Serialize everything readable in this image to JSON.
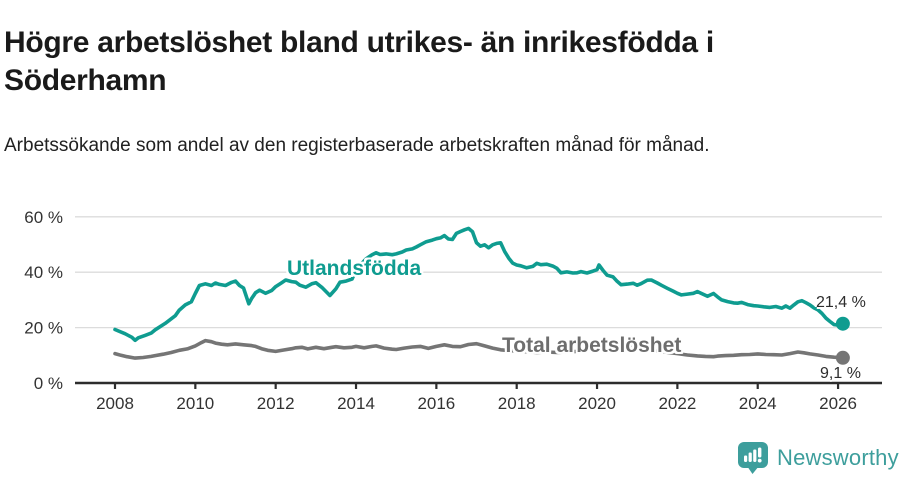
{
  "header": {
    "title": "Högre arbetslöshet bland utrikes- än inrikesfödda i Söderhamn",
    "subtitle": "Arbetssökande som andel av den registerbaserade arbetskraften månad för månad."
  },
  "footer": {
    "brand": "Newsworthy",
    "logo_icon": "bar-chart-speech-bubble-icon",
    "brand_color": "#3d9e9c"
  },
  "colors": {
    "foreign_line": "#0f9c90",
    "total_line": "#757575",
    "gridline": "#dcdcdc",
    "axis": "#2d2d2d",
    "tick_text": "#333333",
    "end_label_text": "#2d2d2d"
  },
  "chart_data": {
    "type": "line",
    "title": "Högre arbetslöshet bland utrikes- än inrikesfödda i Söderhamn",
    "subtitle": "Arbetssökande som andel av den registerbaserade arbetskraften månad för månad.",
    "grid": true,
    "legend_position": "inline-labels",
    "x_axis": {
      "ticks": [
        2008,
        2010,
        2012,
        2014,
        2016,
        2018,
        2020,
        2022,
        2024,
        2026
      ],
      "range": [
        2007.0,
        2027.1
      ]
    },
    "y_axis": {
      "ticks": [
        0,
        20,
        40,
        60
      ],
      "tick_labels": [
        "0 %",
        "20 %",
        "40 %",
        "60 %"
      ],
      "range": [
        0,
        62
      ],
      "unit": "%"
    },
    "series": [
      {
        "name": "Utlandsfödda",
        "color": "#0f9c90",
        "end_label": "21,4 %",
        "end_value": 21.4,
        "points": [
          [
            2008.0,
            19.3
          ],
          [
            2008.08,
            18.8
          ],
          [
            2008.25,
            17.8
          ],
          [
            2008.42,
            16.5
          ],
          [
            2008.5,
            15.4
          ],
          [
            2008.58,
            16.3
          ],
          [
            2008.75,
            17.2
          ],
          [
            2008.9,
            18.0
          ],
          [
            2009.0,
            19.2
          ],
          [
            2009.25,
            21.5
          ],
          [
            2009.5,
            24.3
          ],
          [
            2009.6,
            26.3
          ],
          [
            2009.75,
            28.2
          ],
          [
            2009.9,
            29.3
          ],
          [
            2010.0,
            32.3
          ],
          [
            2010.1,
            35.2
          ],
          [
            2010.25,
            35.8
          ],
          [
            2010.4,
            35.2
          ],
          [
            2010.5,
            36.1
          ],
          [
            2010.6,
            35.6
          ],
          [
            2010.75,
            35.2
          ],
          [
            2010.9,
            36.3
          ],
          [
            2011.0,
            36.8
          ],
          [
            2011.1,
            35.2
          ],
          [
            2011.2,
            34.3
          ],
          [
            2011.33,
            28.6
          ],
          [
            2011.4,
            30.5
          ],
          [
            2011.5,
            32.6
          ],
          [
            2011.6,
            33.5
          ],
          [
            2011.75,
            32.4
          ],
          [
            2011.9,
            33.4
          ],
          [
            2012.0,
            34.8
          ],
          [
            2012.15,
            36.2
          ],
          [
            2012.25,
            37.2
          ],
          [
            2012.4,
            36.6
          ],
          [
            2012.5,
            36.4
          ],
          [
            2012.6,
            35.3
          ],
          [
            2012.75,
            34.6
          ],
          [
            2012.9,
            35.8
          ],
          [
            2013.0,
            36.2
          ],
          [
            2013.15,
            34.5
          ],
          [
            2013.35,
            31.6
          ],
          [
            2013.5,
            34.0
          ],
          [
            2013.6,
            36.4
          ],
          [
            2013.75,
            36.8
          ],
          [
            2013.9,
            37.5
          ],
          [
            2014.0,
            40.6
          ],
          [
            2014.1,
            42.5
          ],
          [
            2014.25,
            44.8
          ],
          [
            2014.4,
            46.3
          ],
          [
            2014.5,
            47.0
          ],
          [
            2014.6,
            46.4
          ],
          [
            2014.75,
            46.6
          ],
          [
            2014.9,
            46.3
          ],
          [
            2015.0,
            46.6
          ],
          [
            2015.15,
            47.3
          ],
          [
            2015.25,
            48.0
          ],
          [
            2015.4,
            48.4
          ],
          [
            2015.5,
            49.1
          ],
          [
            2015.6,
            49.9
          ],
          [
            2015.75,
            51.0
          ],
          [
            2015.9,
            51.6
          ],
          [
            2016.0,
            52.1
          ],
          [
            2016.1,
            52.4
          ],
          [
            2016.2,
            53.2
          ],
          [
            2016.3,
            52.0
          ],
          [
            2016.4,
            51.8
          ],
          [
            2016.5,
            54.0
          ],
          [
            2016.6,
            54.7
          ],
          [
            2016.7,
            55.3
          ],
          [
            2016.8,
            55.8
          ],
          [
            2016.9,
            54.6
          ],
          [
            2017.0,
            50.6
          ],
          [
            2017.1,
            49.4
          ],
          [
            2017.2,
            49.9
          ],
          [
            2017.3,
            48.8
          ],
          [
            2017.4,
            49.9
          ],
          [
            2017.5,
            50.4
          ],
          [
            2017.6,
            50.6
          ],
          [
            2017.7,
            47.5
          ],
          [
            2017.8,
            45.1
          ],
          [
            2017.9,
            43.3
          ],
          [
            2018.0,
            42.6
          ],
          [
            2018.1,
            42.3
          ],
          [
            2018.25,
            41.6
          ],
          [
            2018.4,
            42.1
          ],
          [
            2018.5,
            43.2
          ],
          [
            2018.6,
            42.7
          ],
          [
            2018.75,
            42.9
          ],
          [
            2018.9,
            42.2
          ],
          [
            2019.0,
            41.4
          ],
          [
            2019.1,
            39.8
          ],
          [
            2019.25,
            40.1
          ],
          [
            2019.4,
            39.7
          ],
          [
            2019.5,
            39.8
          ],
          [
            2019.6,
            40.2
          ],
          [
            2019.75,
            39.7
          ],
          [
            2019.9,
            40.4
          ],
          [
            2020.0,
            40.9
          ],
          [
            2020.05,
            42.6
          ],
          [
            2020.15,
            40.6
          ],
          [
            2020.25,
            38.9
          ],
          [
            2020.4,
            38.3
          ],
          [
            2020.5,
            36.7
          ],
          [
            2020.6,
            35.5
          ],
          [
            2020.75,
            35.7
          ],
          [
            2020.9,
            36.0
          ],
          [
            2021.0,
            35.3
          ],
          [
            2021.1,
            35.9
          ],
          [
            2021.25,
            37.1
          ],
          [
            2021.35,
            37.2
          ],
          [
            2021.5,
            36.1
          ],
          [
            2021.6,
            35.3
          ],
          [
            2021.75,
            34.2
          ],
          [
            2021.9,
            33.1
          ],
          [
            2022.0,
            32.4
          ],
          [
            2022.1,
            31.8
          ],
          [
            2022.25,
            32.1
          ],
          [
            2022.4,
            32.4
          ],
          [
            2022.5,
            33.0
          ],
          [
            2022.6,
            32.3
          ],
          [
            2022.75,
            31.3
          ],
          [
            2022.9,
            32.3
          ],
          [
            2023.0,
            31.1
          ],
          [
            2023.1,
            30.0
          ],
          [
            2023.25,
            29.4
          ],
          [
            2023.4,
            28.9
          ],
          [
            2023.5,
            28.8
          ],
          [
            2023.6,
            29.1
          ],
          [
            2023.75,
            28.3
          ],
          [
            2023.9,
            27.9
          ],
          [
            2024.0,
            27.8
          ],
          [
            2024.15,
            27.5
          ],
          [
            2024.3,
            27.3
          ],
          [
            2024.45,
            27.6
          ],
          [
            2024.6,
            27.0
          ],
          [
            2024.7,
            27.8
          ],
          [
            2024.8,
            27.0
          ],
          [
            2024.9,
            28.2
          ],
          [
            2025.0,
            29.3
          ],
          [
            2025.1,
            29.7
          ],
          [
            2025.2,
            29.0
          ],
          [
            2025.3,
            28.2
          ],
          [
            2025.4,
            27.1
          ],
          [
            2025.5,
            26.4
          ],
          [
            2025.6,
            25.1
          ],
          [
            2025.7,
            23.4
          ],
          [
            2025.8,
            22.2
          ],
          [
            2025.9,
            21.1
          ],
          [
            2026.0,
            20.9
          ],
          [
            2026.12,
            21.4
          ]
        ]
      },
      {
        "name": "Total arbetslöshet",
        "color": "#757575",
        "end_label": "9,1 %",
        "end_value": 9.1,
        "points": [
          [
            2008.0,
            10.6
          ],
          [
            2008.15,
            10.0
          ],
          [
            2008.3,
            9.5
          ],
          [
            2008.5,
            9.0
          ],
          [
            2008.7,
            9.2
          ],
          [
            2008.9,
            9.6
          ],
          [
            2009.0,
            9.9
          ],
          [
            2009.2,
            10.4
          ],
          [
            2009.4,
            11.0
          ],
          [
            2009.6,
            11.8
          ],
          [
            2009.8,
            12.3
          ],
          [
            2010.0,
            13.4
          ],
          [
            2010.15,
            14.6
          ],
          [
            2010.25,
            15.3
          ],
          [
            2010.4,
            14.9
          ],
          [
            2010.5,
            14.4
          ],
          [
            2010.65,
            14.0
          ],
          [
            2010.8,
            13.8
          ],
          [
            2011.0,
            14.1
          ],
          [
            2011.2,
            13.8
          ],
          [
            2011.4,
            13.5
          ],
          [
            2011.5,
            13.2
          ],
          [
            2011.65,
            12.4
          ],
          [
            2011.8,
            11.8
          ],
          [
            2012.0,
            11.4
          ],
          [
            2012.2,
            11.9
          ],
          [
            2012.4,
            12.4
          ],
          [
            2012.5,
            12.7
          ],
          [
            2012.65,
            12.9
          ],
          [
            2012.8,
            12.3
          ],
          [
            2013.0,
            12.9
          ],
          [
            2013.2,
            12.4
          ],
          [
            2013.4,
            12.9
          ],
          [
            2013.5,
            13.1
          ],
          [
            2013.7,
            12.7
          ],
          [
            2013.9,
            12.9
          ],
          [
            2014.0,
            13.2
          ],
          [
            2014.2,
            12.7
          ],
          [
            2014.4,
            13.2
          ],
          [
            2014.5,
            13.4
          ],
          [
            2014.7,
            12.6
          ],
          [
            2014.9,
            12.2
          ],
          [
            2015.0,
            12.1
          ],
          [
            2015.2,
            12.6
          ],
          [
            2015.4,
            13.0
          ],
          [
            2015.6,
            13.2
          ],
          [
            2015.8,
            12.5
          ],
          [
            2016.0,
            13.2
          ],
          [
            2016.2,
            13.8
          ],
          [
            2016.4,
            13.2
          ],
          [
            2016.6,
            13.1
          ],
          [
            2016.8,
            13.9
          ],
          [
            2017.0,
            14.2
          ],
          [
            2017.2,
            13.4
          ],
          [
            2017.4,
            12.6
          ],
          [
            2017.6,
            12.0
          ],
          [
            2017.8,
            11.7
          ],
          [
            2018.0,
            11.6
          ],
          [
            2018.25,
            11.3
          ],
          [
            2018.5,
            11.0
          ],
          [
            2018.75,
            11.2
          ],
          [
            2019.0,
            11.0
          ],
          [
            2019.25,
            11.2
          ],
          [
            2019.5,
            11.4
          ],
          [
            2019.75,
            11.7
          ],
          [
            2020.0,
            12.1
          ],
          [
            2020.2,
            13.3
          ],
          [
            2020.4,
            13.8
          ],
          [
            2020.6,
            13.5
          ],
          [
            2020.8,
            13.1
          ],
          [
            2021.0,
            12.7
          ],
          [
            2021.25,
            12.2
          ],
          [
            2021.5,
            11.6
          ],
          [
            2021.75,
            11.1
          ],
          [
            2022.0,
            10.6
          ],
          [
            2022.25,
            10.1
          ],
          [
            2022.5,
            9.8
          ],
          [
            2022.7,
            9.6
          ],
          [
            2022.9,
            9.5
          ],
          [
            2023.0,
            9.7
          ],
          [
            2023.2,
            9.9
          ],
          [
            2023.4,
            10.0
          ],
          [
            2023.6,
            10.2
          ],
          [
            2023.8,
            10.3
          ],
          [
            2024.0,
            10.5
          ],
          [
            2024.2,
            10.3
          ],
          [
            2024.4,
            10.2
          ],
          [
            2024.6,
            10.1
          ],
          [
            2024.8,
            10.6
          ],
          [
            2025.0,
            11.2
          ],
          [
            2025.15,
            10.9
          ],
          [
            2025.3,
            10.5
          ],
          [
            2025.5,
            10.1
          ],
          [
            2025.7,
            9.6
          ],
          [
            2025.9,
            9.3
          ],
          [
            2026.12,
            9.1
          ]
        ]
      }
    ]
  }
}
